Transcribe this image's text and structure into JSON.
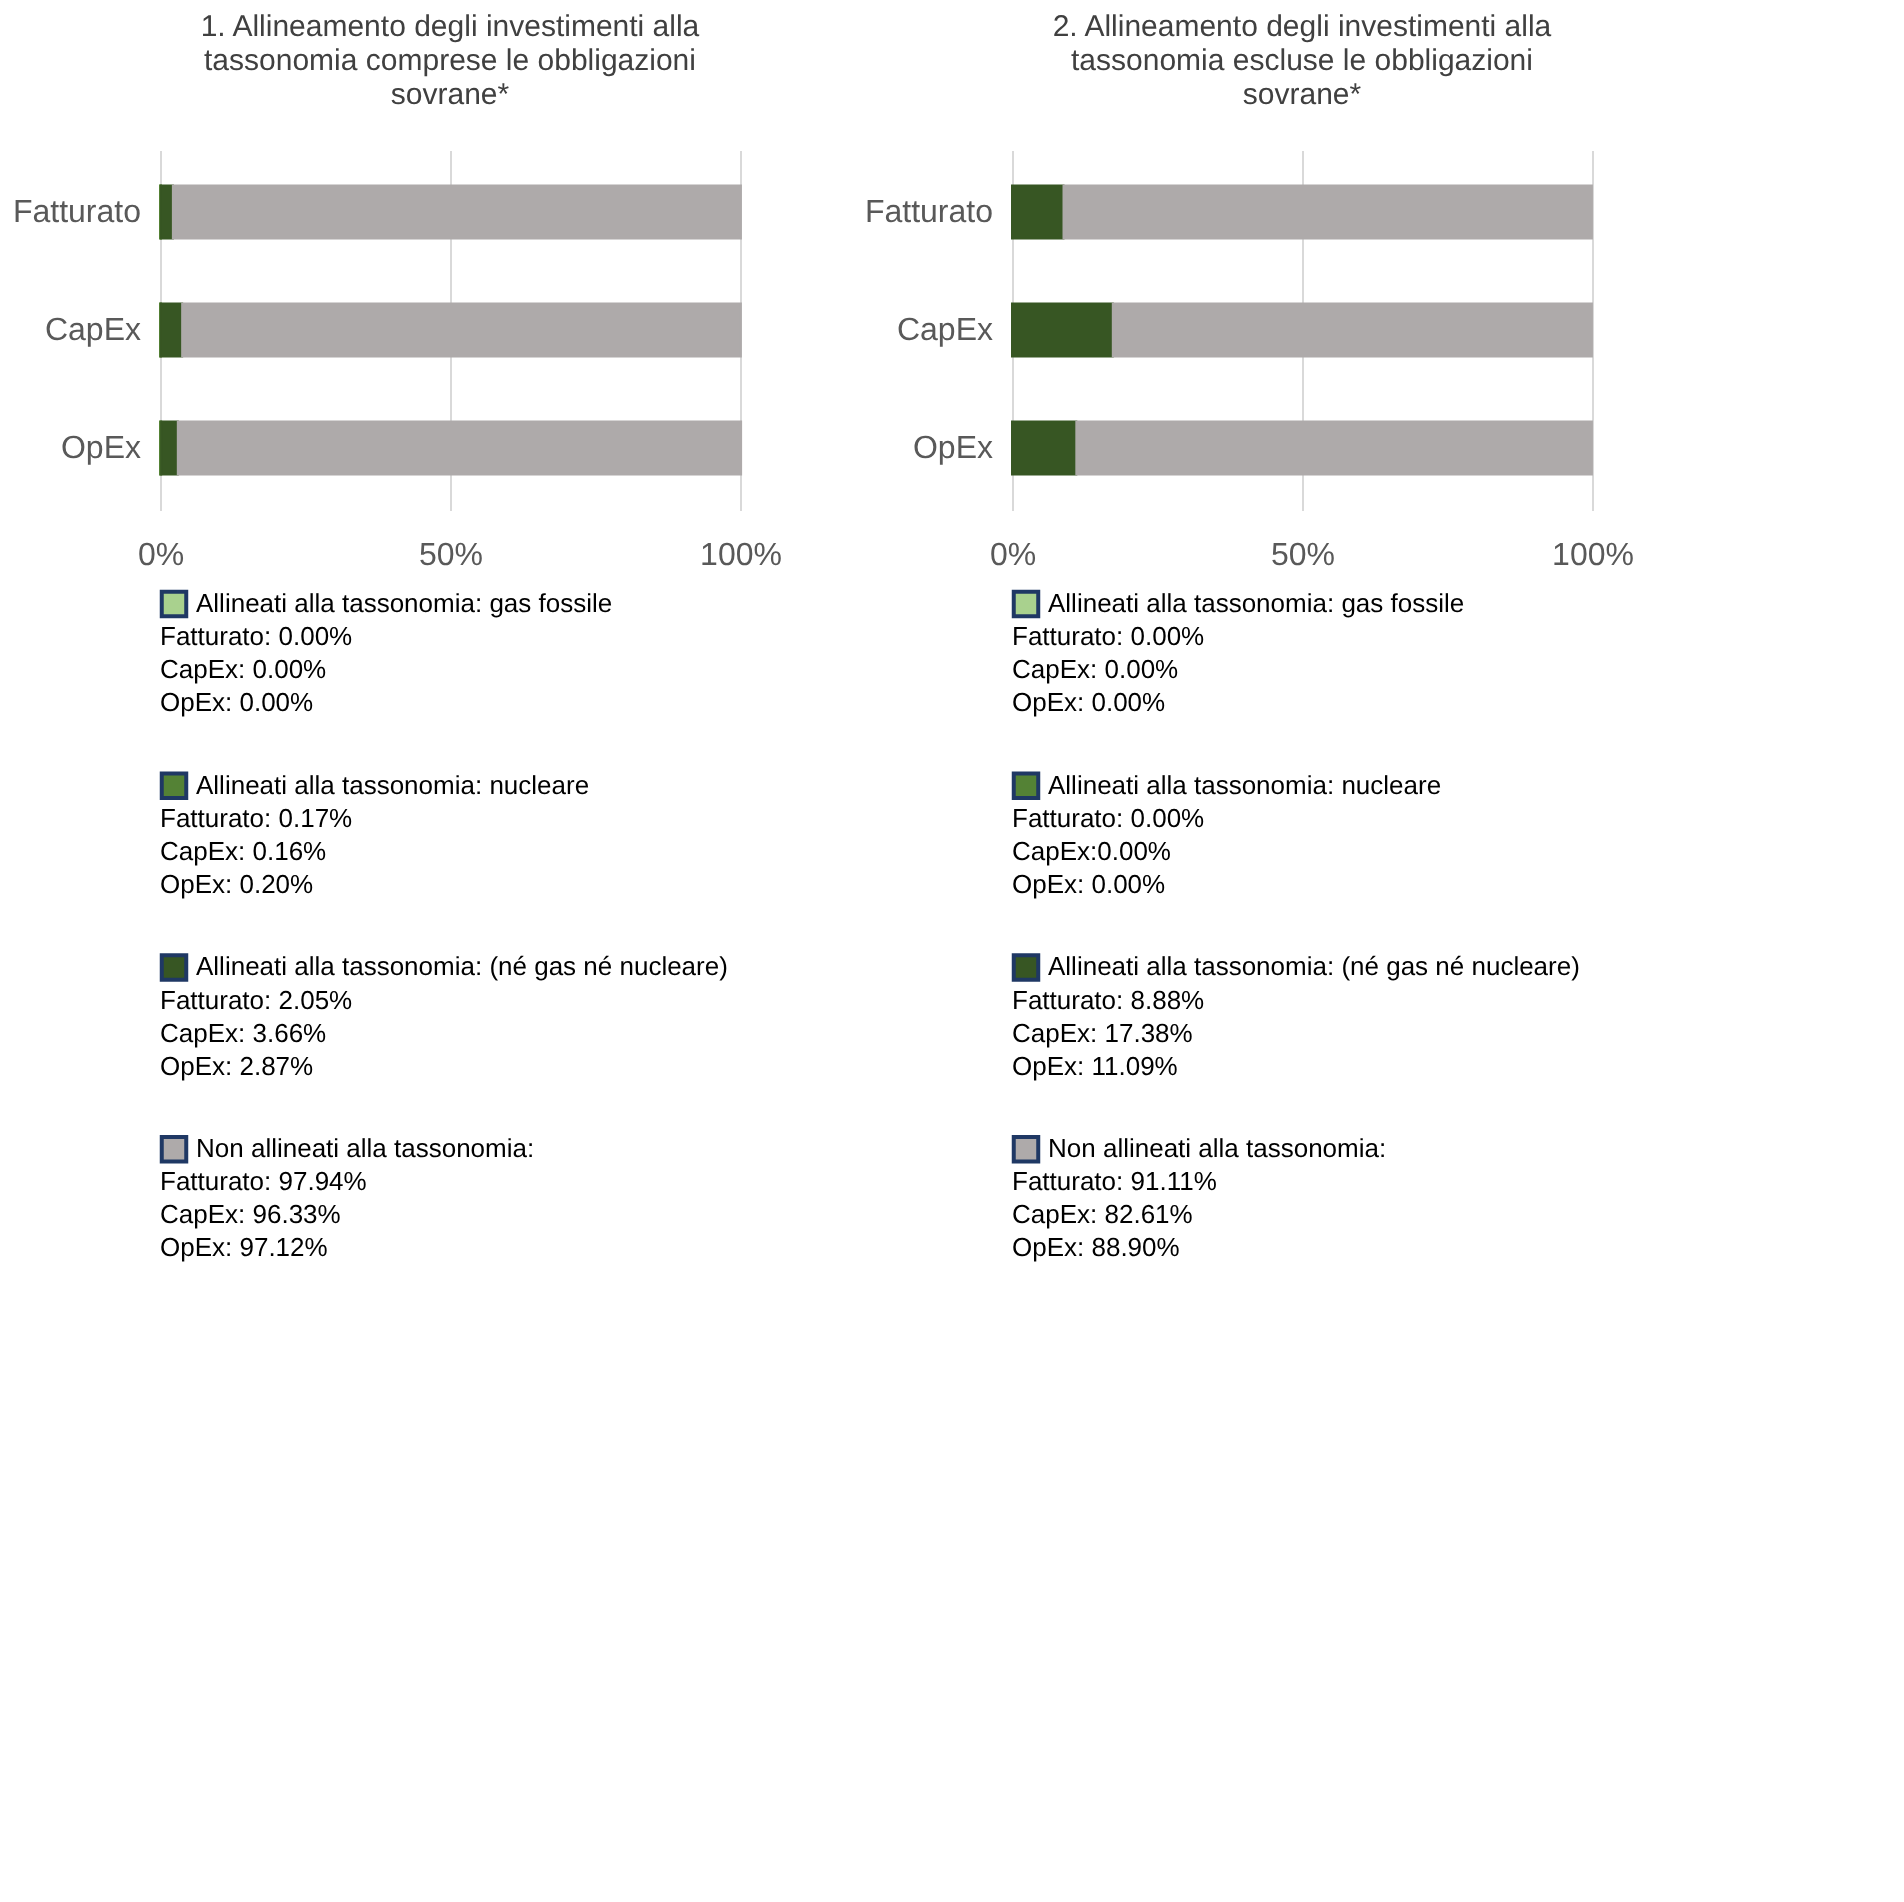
{
  "chart_data": [
    {
      "type": "bar",
      "orientation": "horizontal",
      "stacked": true,
      "title": "1. Allineamento degli investimenti alla tassonomia comprese le obbligazioni sovrane*",
      "categories": [
        "Fatturato",
        "CapEx",
        "OpEx"
      ],
      "xlim": [
        0,
        100
      ],
      "xticks": [
        {
          "value": 0,
          "label": "0%"
        },
        {
          "value": 50,
          "label": "50%"
        },
        {
          "value": 100,
          "label": "100%"
        }
      ],
      "grid": "x",
      "legend": "bottom",
      "series": [
        {
          "name": "Allineati alla tassonomia: gas fossile",
          "color": "#a9d18e",
          "values": [
            0.0,
            0.0,
            0.0
          ]
        },
        {
          "name": "Allineati alla tassonomia: nucleare",
          "color": "#548235",
          "values": [
            0.17,
            0.16,
            0.2
          ]
        },
        {
          "name": "Allineati alla tassonomia: (né gas né nucleare)",
          "color": "#375623",
          "values": [
            2.05,
            3.66,
            2.87
          ]
        },
        {
          "name": "Non allineati alla tassonomia:",
          "color": "#aeaaaa",
          "values": [
            97.94,
            96.33,
            97.12
          ]
        }
      ],
      "annotations": [
        "Fatturato: 0.00%",
        "CapEx: 0.00%",
        "OpEx: 0.00%",
        "Fatturato: 0.17%",
        "CapEx: 0.16%",
        "OpEx: 0.20%",
        "Fatturato: 2.05%",
        "CapEx: 3.66%",
        "OpEx: 2.87%",
        "Fatturato: 97.94%",
        "CapEx: 96.33%",
        "OpEx: 97.12%"
      ]
    },
    {
      "type": "bar",
      "orientation": "horizontal",
      "stacked": true,
      "title": "2. Allineamento degli investimenti alla tassonomia escluse le obbligazioni sovrane*",
      "categories": [
        "Fatturato",
        "CapEx",
        "OpEx"
      ],
      "xlim": [
        0,
        100
      ],
      "xticks": [
        {
          "value": 0,
          "label": "0%"
        },
        {
          "value": 50,
          "label": "50%"
        },
        {
          "value": 100,
          "label": "100%"
        }
      ],
      "grid": "x",
      "legend": "bottom",
      "series": [
        {
          "name": "Allineati alla tassonomia: gas fossile",
          "color": "#a9d18e",
          "values": [
            0.0,
            0.0,
            0.0
          ]
        },
        {
          "name": "Allineati alla tassonomia: nucleare",
          "color": "#548235",
          "values": [
            0.0,
            0.0,
            0.0
          ]
        },
        {
          "name": "Allineati alla tassonomia: (né gas né nucleare)",
          "color": "#375623",
          "values": [
            8.88,
            17.38,
            11.09
          ]
        },
        {
          "name": "Non allineati alla tassonomia:",
          "color": "#aeaaaa",
          "values": [
            91.11,
            82.61,
            88.9
          ]
        }
      ],
      "annotations": [
        "Fatturato: 0.00%",
        "CapEx: 0.00%",
        "OpEx: 0.00%",
        "Fatturato: 0.00%",
        "CapEx:0.00%",
        "OpEx: 0.00%",
        "Fatturato: 8.88%",
        "CapEx: 17.38%",
        "OpEx: 11.09%",
        "Fatturato: 91.11%",
        "CapEx: 82.61%",
        "OpEx: 88.90%"
      ]
    }
  ]
}
